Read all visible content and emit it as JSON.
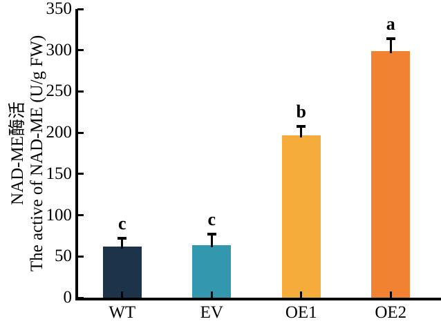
{
  "figure": {
    "background": "#ffffff",
    "axis_color": "#000000",
    "text_color": "#000000"
  },
  "chart_data": {
    "type": "bar",
    "title": "",
    "categories": [
      "WT",
      "EV",
      "OE1",
      "OE2"
    ],
    "values": [
      62,
      64,
      197,
      299
    ],
    "errors_plus": [
      12,
      15,
      12,
      17
    ],
    "sig_letters": [
      "c",
      "c",
      "b",
      "a"
    ],
    "bar_colors": [
      "#1d3349",
      "#3397ae",
      "#f5ac3a",
      "#f08231"
    ],
    "ylabel_line1": "NAD-ME酶活",
    "ylabel_line2": "The active of NAD-ME (U/g FW)",
    "xlabel": "",
    "ylim": [
      0,
      350
    ],
    "yticks": [
      0,
      50,
      100,
      150,
      200,
      250,
      300,
      350
    ],
    "grid": false,
    "legend_position": "none",
    "error_bar_style": "upper whisker with cap",
    "spines": [
      "left",
      "bottom"
    ]
  }
}
